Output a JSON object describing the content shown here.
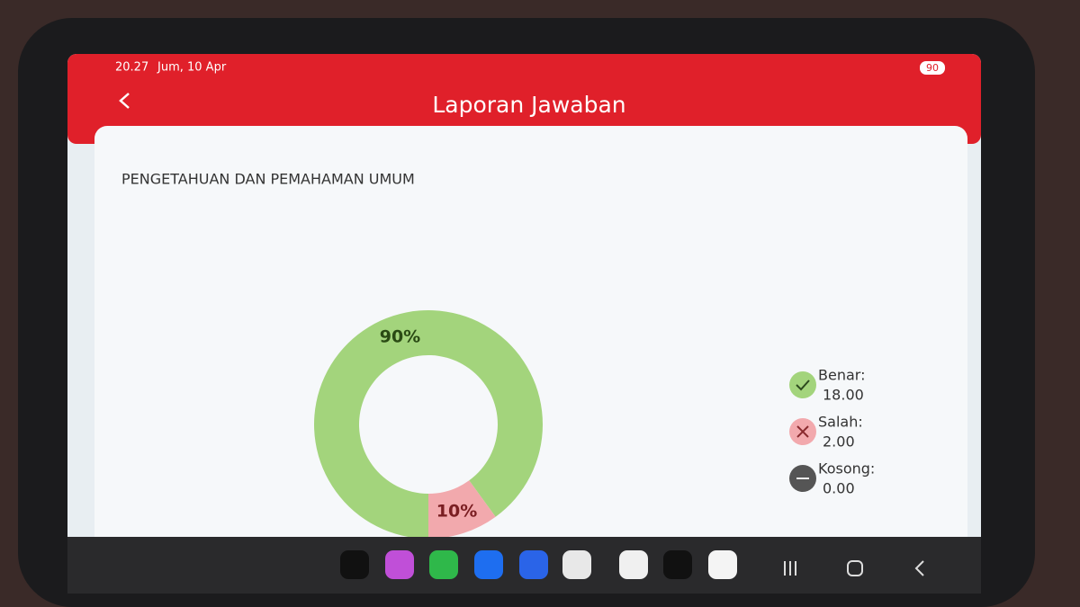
{
  "status_bar": {
    "time": "20.27",
    "date": "Jum, 10 Apr",
    "battery": "90"
  },
  "header": {
    "title": "Laporan Jawaban"
  },
  "section_title": "PENGETAHUAN DAN PEMAHAMAN UMUM",
  "chart": {
    "type": "pie",
    "values": [
      90,
      10
    ],
    "value_labels": [
      "90%",
      "10%"
    ],
    "colors": [
      "#a3d47c",
      "#f2a9ad"
    ]
  },
  "legend": [
    {
      "label": "Benar:",
      "value": "18.00"
    },
    {
      "label": "Salah:",
      "value": "2.00"
    },
    {
      "label": "Kosong:",
      "value": "0.00"
    }
  ]
}
